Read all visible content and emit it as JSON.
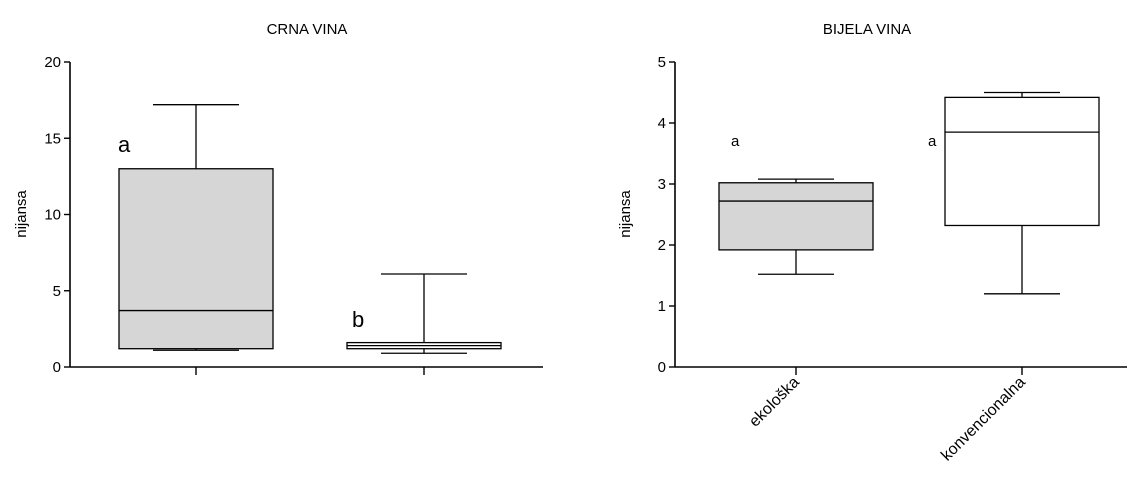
{
  "colors": {
    "box_fill_gray": "#d6d6d6",
    "box_fill_white": "#ffffff",
    "stroke": "#000000"
  },
  "chart_data": [
    {
      "type": "box",
      "title": "CRNA VINA",
      "ylabel": "nijansa",
      "xlabel": "",
      "ylim": [
        0,
        20
      ],
      "yticks": [
        0,
        5,
        10,
        15,
        20
      ],
      "categories": [
        "",
        ""
      ],
      "boxes": [
        {
          "min": 1.1,
          "q1": 1.2,
          "median": 3.7,
          "q3": 13.0,
          "max": 17.2,
          "fill": "gray",
          "annotation": "a"
        },
        {
          "min": 0.9,
          "q1": 1.2,
          "median": 1.4,
          "q3": 1.6,
          "max": 6.1,
          "fill": "white",
          "annotation": "b"
        }
      ]
    },
    {
      "type": "box",
      "title": "BIJELA VINA",
      "ylabel": "nijansa",
      "xlabel": "",
      "ylim": [
        0,
        5
      ],
      "yticks": [
        0,
        1,
        2,
        3,
        4,
        5
      ],
      "categories": [
        "ekološka",
        "konvencionalna"
      ],
      "boxes": [
        {
          "min": 1.52,
          "q1": 1.92,
          "median": 2.72,
          "q3": 3.02,
          "max": 3.08,
          "fill": "gray",
          "annotation": "a"
        },
        {
          "min": 1.2,
          "q1": 2.32,
          "median": 3.85,
          "q3": 4.42,
          "max": 4.5,
          "fill": "white",
          "annotation": "a"
        }
      ]
    }
  ]
}
